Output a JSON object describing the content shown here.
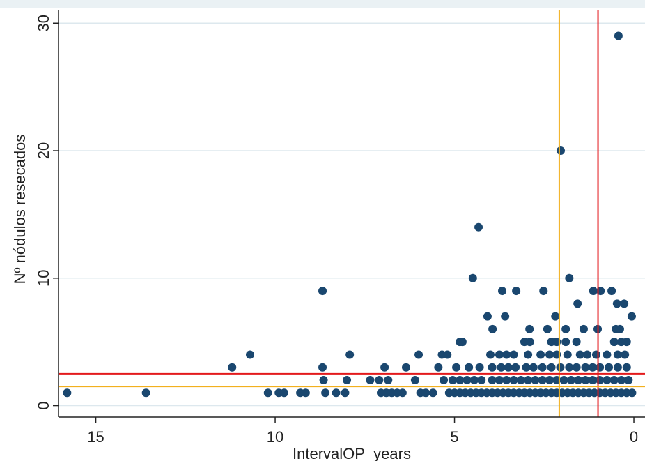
{
  "chart_data": {
    "type": "scatter",
    "x_label": "IntervalOP_years",
    "y_label": "Nº nódulos resecados",
    "color": "#1a476f",
    "grid": true,
    "xlim": [
      16.04,
      -0.31
    ],
    "ylim": [
      -0.9,
      31
    ],
    "xticks": [
      15,
      10,
      5,
      0
    ],
    "yticks": [
      0,
      10,
      20,
      30
    ],
    "reference_lines": [
      {
        "orientation": "vertical",
        "value": 2.08,
        "color": "#f2b01e"
      },
      {
        "orientation": "vertical",
        "value": 1,
        "color": "#e31a1c"
      },
      {
        "orientation": "horizontal",
        "value": 2.5,
        "color": "#e31a1c"
      },
      {
        "orientation": "horizontal",
        "value": 1.5,
        "color": "#f2b01e"
      }
    ],
    "x": [
      15.8,
      13.6,
      11.2,
      10.7,
      10.2,
      9.9,
      9.75,
      9.3,
      9.15,
      8.68,
      8.68,
      8.65,
      8.6,
      8.3,
      8.05,
      8.0,
      7.92,
      7.35,
      7.1,
      6.95,
      6.85,
      7.05,
      6.9,
      6.75,
      6.6,
      6.45,
      6.35,
      6.1,
      6.0,
      5.95,
      5.8,
      5.6,
      5.45,
      5.35,
      5.2,
      5.3,
      5.15,
      5.0,
      4.85,
      4.7,
      4.55,
      4.4,
      4.25,
      4.1,
      3.95,
      3.8,
      3.65,
      3.5,
      3.35,
      3.2,
      3.05,
      2.9,
      2.75,
      2.6,
      2.45,
      2.3,
      2.15,
      2.0,
      1.85,
      1.7,
      1.55,
      1.4,
      1.25,
      1.1,
      0.95,
      0.8,
      0.65,
      0.5,
      0.35,
      0.2,
      0.05,
      5.05,
      4.85,
      4.65,
      4.45,
      4.25,
      3.95,
      3.75,
      3.55,
      3.35,
      3.15,
      2.95,
      2.75,
      2.55,
      2.35,
      2.15,
      1.95,
      1.75,
      1.55,
      1.35,
      1.15,
      0.95,
      0.75,
      0.55,
      0.35,
      0.15,
      4.95,
      4.6,
      4.3,
      3.95,
      3.7,
      3.5,
      3.3,
      3.0,
      2.8,
      2.55,
      2.3,
      2.05,
      1.8,
      1.6,
      1.35,
      1.15,
      0.95,
      0.7,
      0.45,
      0.2,
      4.0,
      3.75,
      3.55,
      3.35,
      2.95,
      2.6,
      2.35,
      2.15,
      1.85,
      1.5,
      1.3,
      1.05,
      0.75,
      0.45,
      0.25,
      4.85,
      4.78,
      3.05,
      2.9,
      2.3,
      2.15,
      1.9,
      1.6,
      0.55,
      0.35,
      0.2,
      3.94,
      2.91,
      2.41,
      1.9,
      1.4,
      1.01,
      0.5,
      0.39,
      4.08,
      3.59,
      2.19,
      0.06,
      1.57,
      0.47,
      0.27,
      3.67,
      3.28,
      2.52,
      1.13,
      0.93,
      0.62,
      4.49,
      1.8,
      4.33,
      2.04,
      0.43
    ],
    "values": [
      1,
      1,
      3,
      4,
      1,
      1,
      1,
      1,
      1,
      9,
      3,
      2,
      1,
      1,
      1,
      2,
      4,
      2,
      2,
      3,
      2,
      1,
      1,
      1,
      1,
      1,
      3,
      2,
      4,
      1,
      1,
      1,
      3,
      4,
      4,
      2,
      1,
      1,
      1,
      1,
      1,
      1,
      1,
      1,
      1,
      1,
      1,
      1,
      1,
      1,
      1,
      1,
      1,
      1,
      1,
      1,
      1,
      1,
      1,
      1,
      1,
      1,
      1,
      1,
      1,
      1,
      1,
      1,
      1,
      1,
      1,
      2,
      2,
      2,
      2,
      2,
      2,
      2,
      2,
      2,
      2,
      2,
      2,
      2,
      2,
      2,
      2,
      2,
      2,
      2,
      2,
      2,
      2,
      2,
      2,
      2,
      3,
      3,
      3,
      3,
      3,
      3,
      3,
      3,
      3,
      3,
      3,
      3,
      3,
      3,
      3,
      3,
      3,
      3,
      3,
      3,
      4,
      4,
      4,
      4,
      4,
      4,
      4,
      4,
      4,
      4,
      4,
      4,
      4,
      4,
      4,
      5,
      5,
      5,
      5,
      5,
      5,
      5,
      5,
      5,
      5,
      5,
      6,
      6,
      6,
      6,
      6,
      6,
      6,
      6,
      7,
      7,
      7,
      7,
      8,
      8,
      8,
      9,
      9,
      9,
      9,
      9,
      9,
      10,
      10,
      14,
      20,
      29
    ]
  }
}
